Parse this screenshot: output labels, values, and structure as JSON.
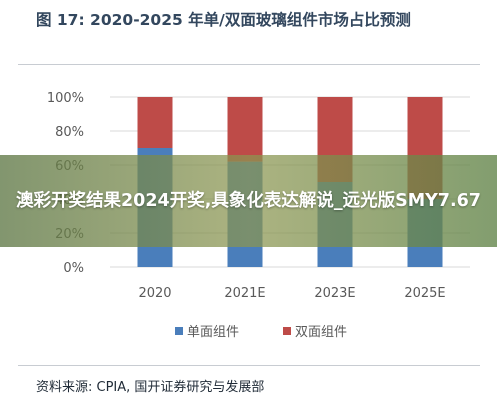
{
  "figure": {
    "title": "图 17:  2020-2025 年单/双面玻璃组件市场占比预测",
    "source": "资料来源:  CPIA,  国开证券研究与发展部"
  },
  "overlay": {
    "text": "澳彩开奖结果2024开奖,具象化表达解说_远光版SMY7.67"
  },
  "colors": {
    "single_sided": "#4a7ebb",
    "double_sided": "#be4b48",
    "title": "#33475e",
    "axis_text": "#595959",
    "gridline": "#d9d9d9"
  },
  "chart_data": {
    "type": "bar",
    "stacked": true,
    "categories": [
      "2020",
      "2021E",
      "2023E",
      "2025E"
    ],
    "series": [
      {
        "name": "单面组件",
        "values": [
          70,
          62,
          50,
          40
        ],
        "color": "#4a7ebb"
      },
      {
        "name": "双面组件",
        "values": [
          30,
          38,
          50,
          60
        ],
        "color": "#be4b48"
      }
    ],
    "ylim": [
      0,
      100
    ],
    "yticks": [
      "0%",
      "20%",
      "40%",
      "60%",
      "80%",
      "100%"
    ],
    "grid": true,
    "legend_position": "bottom"
  }
}
